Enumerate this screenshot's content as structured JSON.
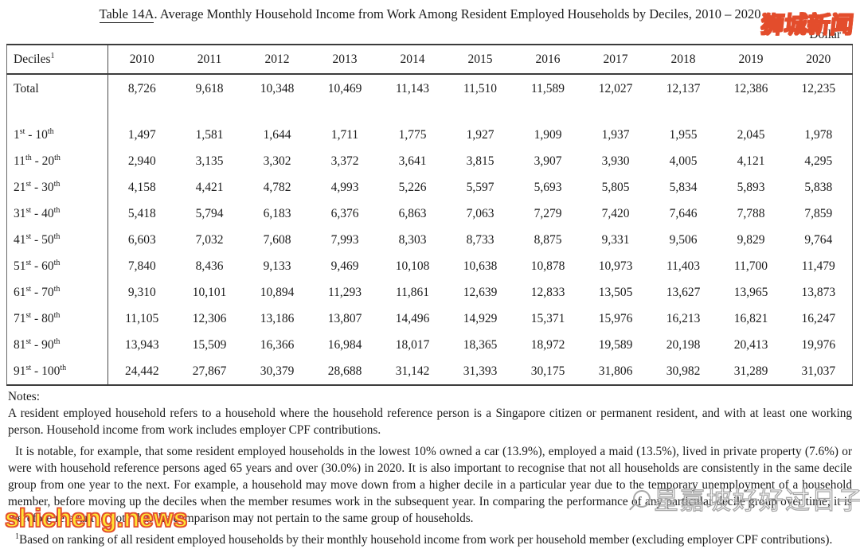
{
  "title": {
    "prefix": "Table 14A",
    "rest": ". Average Monthly Household Income from Work Among Resident Employed Households by Deciles, 2010 – 2020",
    "unit": "Dollar"
  },
  "table": {
    "header": {
      "deciles_label": "Deciles",
      "footnote_marker": "1",
      "years": [
        "2010",
        "2011",
        "2012",
        "2013",
        "2014",
        "2015",
        "2016",
        "2017",
        "2018",
        "2019",
        "2020"
      ]
    },
    "rows": [
      {
        "label": "Total",
        "values": [
          "8,726",
          "9,618",
          "10,348",
          "10,469",
          "11,143",
          "11,510",
          "11,589",
          "12,027",
          "12,137",
          "12,386",
          "12,235"
        ]
      },
      {
        "label": "1st - 10th",
        "values": [
          "1,497",
          "1,581",
          "1,644",
          "1,711",
          "1,775",
          "1,927",
          "1,909",
          "1,937",
          "1,955",
          "2,045",
          "1,978"
        ]
      },
      {
        "label": "11th - 20th",
        "values": [
          "2,940",
          "3,135",
          "3,302",
          "3,372",
          "3,641",
          "3,815",
          "3,907",
          "3,930",
          "4,005",
          "4,121",
          "4,295"
        ]
      },
      {
        "label": "21st - 30th",
        "values": [
          "4,158",
          "4,421",
          "4,782",
          "4,993",
          "5,226",
          "5,597",
          "5,693",
          "5,805",
          "5,834",
          "5,893",
          "5,838"
        ]
      },
      {
        "label": "31st - 40th",
        "values": [
          "5,418",
          "5,794",
          "6,183",
          "6,376",
          "6,863",
          "7,063",
          "7,279",
          "7,420",
          "7,646",
          "7,788",
          "7,859"
        ]
      },
      {
        "label": "41st - 50th",
        "values": [
          "6,603",
          "7,032",
          "7,608",
          "7,993",
          "8,303",
          "8,733",
          "8,875",
          "9,331",
          "9,506",
          "9,829",
          "9,764"
        ]
      },
      {
        "label": "51st - 60th",
        "values": [
          "7,840",
          "8,436",
          "9,133",
          "9,469",
          "10,108",
          "10,638",
          "10,878",
          "10,973",
          "11,403",
          "11,700",
          "11,479"
        ]
      },
      {
        "label": "61st - 70th",
        "values": [
          "9,310",
          "10,101",
          "10,894",
          "11,293",
          "11,861",
          "12,639",
          "12,833",
          "13,505",
          "13,627",
          "13,965",
          "13,873"
        ]
      },
      {
        "label": "71st - 80th",
        "values": [
          "11,105",
          "12,306",
          "13,186",
          "13,807",
          "14,496",
          "14,929",
          "15,371",
          "15,976",
          "16,213",
          "16,821",
          "16,247"
        ]
      },
      {
        "label": "81st - 90th",
        "values": [
          "13,943",
          "15,509",
          "16,366",
          "16,984",
          "18,017",
          "18,365",
          "18,972",
          "19,589",
          "20,198",
          "20,413",
          "19,976"
        ]
      },
      {
        "label": "91st - 100th",
        "values": [
          "24,442",
          "27,867",
          "30,379",
          "28,688",
          "31,142",
          "31,393",
          "30,175",
          "31,806",
          "30,982",
          "31,289",
          "31,037"
        ]
      }
    ]
  },
  "notes": {
    "heading": "Notes:",
    "para1": "A resident employed household refers to a household where the household reference person is a Singapore citizen or permanent resident, and with at least one working person. Household income from work includes employer CPF contributions.",
    "para2": "It is notable, for example, that some resident employed households in the lowest 10% owned a car (13.9%), employed a maid (13.5%), lived in private property (7.6%) or were with household reference persons aged 65 years and over (30.0%) in 2020. It is also important to recognise that not all households are consistently in the same decile group from one year to the next. For example, a household may move down from a higher decile in a particular year due to the temporary unemployment of a household member, before moving up the deciles when the member resumes work in the subsequent year. In comparing the performance of any particular decile group over time, it is therefore relevant to note that the comparison may not pertain to the same group of households.",
    "footnote_marker": "1",
    "footnote": "Based on ranking of all resident employed households by their monthly household income from work per household member (excluding employer CPF contributions)."
  },
  "watermarks": {
    "top_right": "狮城新闻",
    "bottom_left": "shicheng.news",
    "gray_text": "星嘉坡好好过日子",
    "yellow_color": "#ffe435",
    "red_outline_color": "#e34d2c",
    "gray_outline_color": "#a8a8a8"
  }
}
